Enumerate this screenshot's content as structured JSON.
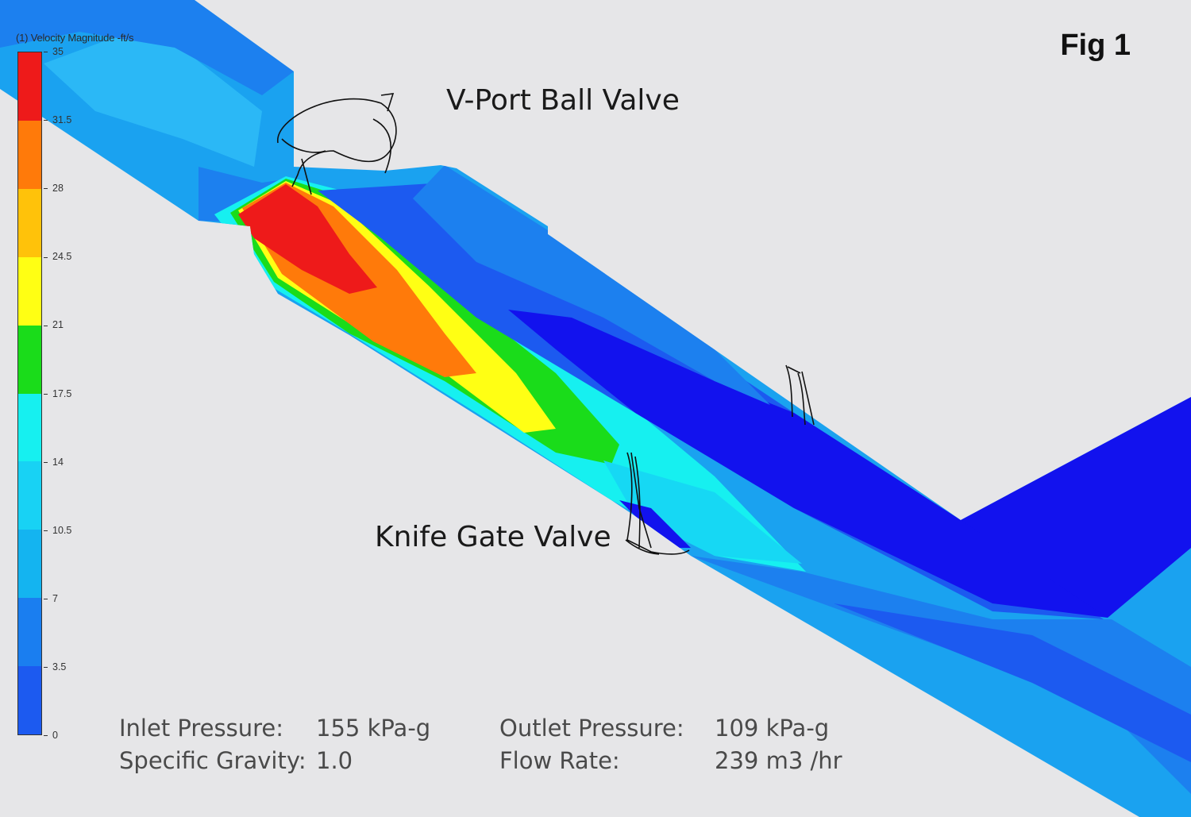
{
  "figure_label": "Fig 1",
  "legend": {
    "title": "(1) Velocity Magnitude -ft/s",
    "ticks": [
      "35",
      "31.5",
      "28",
      "24.5",
      "21",
      "17.5",
      "14",
      "10.5",
      "7",
      "3.5",
      "0"
    ],
    "colors": [
      "#ee1a1a",
      "#ff7a0a",
      "#ffc20a",
      "#ffff14",
      "#1adc1a",
      "#16f0f0",
      "#18d2f4",
      "#14b4f0",
      "#1a7ef0",
      "#1c5af0",
      "#1010ef"
    ]
  },
  "callouts": {
    "ball_valve": "V-Port Ball Valve",
    "gate_valve": "Knife Gate Valve"
  },
  "conditions": {
    "inlet_pressure_label": "Inlet Pressure:",
    "inlet_pressure_value": "155 kPa-g",
    "outlet_pressure_label": "Outlet Pressure:",
    "outlet_pressure_value": "109 kPa-g",
    "specific_gravity_label": "Specific Gravity:",
    "specific_gravity_value": "1.0",
    "flow_rate_label": "Flow Rate:",
    "flow_rate_value": "239 m3 /hr"
  }
}
